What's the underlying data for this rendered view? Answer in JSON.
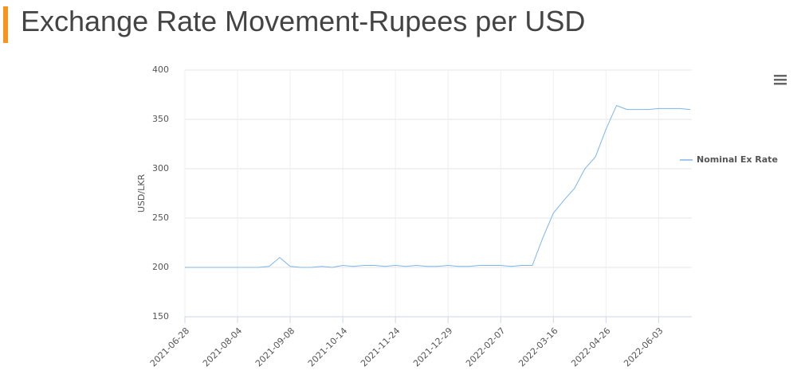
{
  "chart_data": {
    "type": "line",
    "title": "Exchange Rate Movement-Rupees per USD",
    "y_label": "USD/LKR",
    "categories": [
      "2021-06-28",
      null,
      null,
      null,
      null,
      "2021-08-04",
      null,
      null,
      null,
      null,
      "2021-09-08",
      null,
      null,
      null,
      null,
      "2021-10-14",
      null,
      null,
      null,
      null,
      "2021-11-24",
      null,
      null,
      null,
      null,
      "2021-12-29",
      null,
      null,
      null,
      null,
      "2022-02-07",
      null,
      null,
      null,
      null,
      "2022-03-16",
      null,
      null,
      null,
      null,
      "2022-04-26",
      null,
      null,
      null,
      null,
      "2022-06-03",
      null,
      null,
      null
    ],
    "series": [
      {
        "name": "Nominal Ex Rate",
        "color": "#7cb5ec",
        "values": [
          200,
          200,
          200,
          200,
          200,
          200,
          200,
          200,
          201,
          210,
          201,
          200,
          200,
          201,
          200,
          202,
          201,
          202,
          202,
          201,
          202,
          201,
          202,
          201,
          201,
          202,
          201,
          201,
          202,
          202,
          202,
          201,
          202,
          202,
          230,
          255,
          268,
          280,
          300,
          312,
          340,
          364,
          360,
          360,
          360,
          361,
          361,
          361,
          360
        ]
      }
    ],
    "ylim": [
      150,
      400
    ],
    "yticks": [
      150,
      200,
      250,
      300,
      350,
      400
    ],
    "grid": true,
    "legend": "right"
  }
}
